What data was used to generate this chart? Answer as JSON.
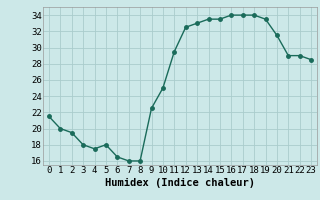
{
  "x": [
    0,
    1,
    2,
    3,
    4,
    5,
    6,
    7,
    8,
    9,
    10,
    11,
    12,
    13,
    14,
    15,
    16,
    17,
    18,
    19,
    20,
    21,
    22,
    23
  ],
  "y": [
    21.5,
    20.0,
    19.5,
    18.0,
    17.5,
    18.0,
    16.5,
    16.0,
    16.0,
    22.5,
    25.0,
    29.5,
    32.5,
    33.0,
    33.5,
    33.5,
    34.0,
    34.0,
    34.0,
    33.5,
    31.5,
    29.0,
    29.0,
    28.5
  ],
  "line_color": "#1a6b5a",
  "marker": "o",
  "marker_size": 2.5,
  "bg_color": "#cce8e8",
  "grid_color": "#aacccc",
  "xlabel": "Humidex (Indice chaleur)",
  "xlim": [
    -0.5,
    23.5
  ],
  "ylim": [
    15.5,
    35.0
  ],
  "yticks": [
    16,
    18,
    20,
    22,
    24,
    26,
    28,
    30,
    32,
    34
  ],
  "xticks": [
    0,
    1,
    2,
    3,
    4,
    5,
    6,
    7,
    8,
    9,
    10,
    11,
    12,
    13,
    14,
    15,
    16,
    17,
    18,
    19,
    20,
    21,
    22,
    23
  ],
  "tick_label_fontsize": 6.5,
  "xlabel_fontsize": 7.5,
  "line_width": 1.0
}
